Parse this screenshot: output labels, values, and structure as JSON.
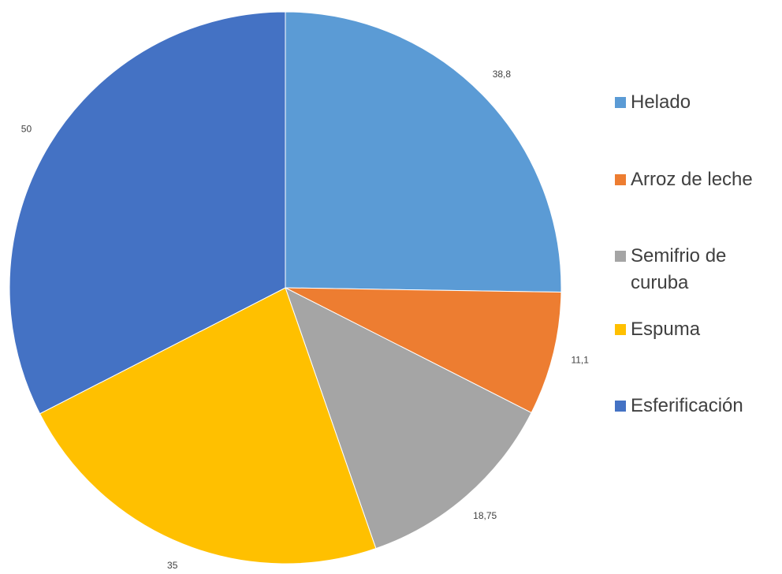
{
  "chart_data": {
    "type": "pie",
    "categories": [
      "Helado",
      "Arroz de leche",
      "Semifrio de curuba",
      "Espuma",
      "Esferificación"
    ],
    "values": [
      38.8,
      11.1,
      18.75,
      35,
      50
    ],
    "value_labels": [
      "38,8",
      "11,1",
      "18,75",
      "35",
      "50"
    ],
    "colors": [
      "#5b9bd5",
      "#ed7d31",
      "#a5a5a5",
      "#ffc000",
      "#4472c4"
    ],
    "legend": "right"
  }
}
